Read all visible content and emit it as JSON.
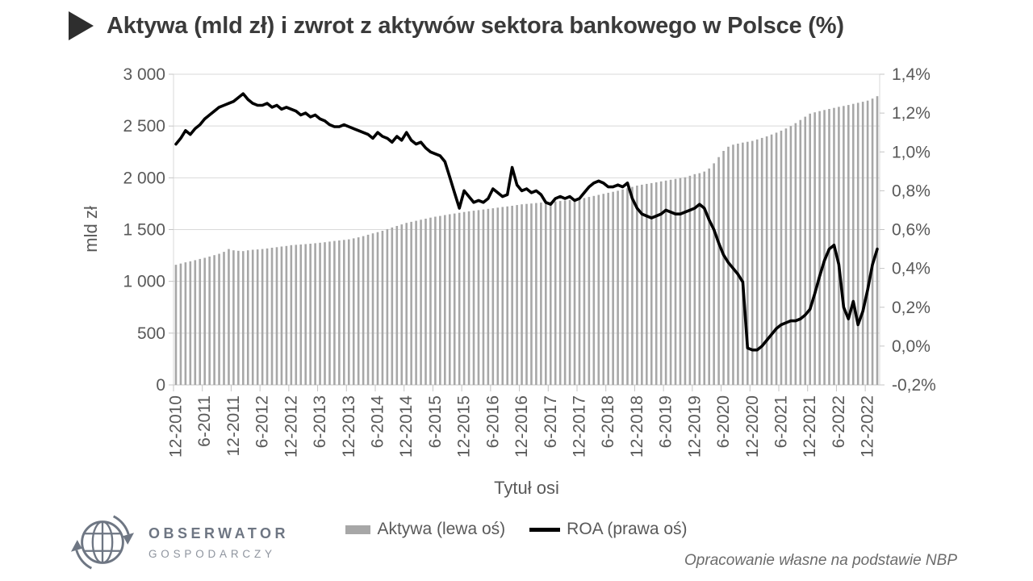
{
  "title": "Aktywa (mld zł) i zwrot z aktywów sektora bankowego w Polsce (%)",
  "source": "Opracowanie własne na podstawie NBP",
  "logo": {
    "line1": "OBSERWATOR",
    "line2": "GOSPODARCZY"
  },
  "colors": {
    "bar": "#a7a7a7",
    "line": "#000000",
    "grid": "#d9d9d9",
    "axis": "#c4c4c4",
    "tick_text": "#595959"
  },
  "chart_data": {
    "type": "bar+line combo",
    "n_points": 147,
    "x_frequency": "monthly",
    "x_label_every": 6,
    "x_axis_title": "Tytuł osi",
    "x_tick_labels": [
      "12-2010",
      "6-2011",
      "12-2011",
      "6-2012",
      "12-2012",
      "6-2013",
      "12-2013",
      "6-2014",
      "12-2014",
      "6-2015",
      "12-2015",
      "6-2016",
      "12-2016",
      "6-2017",
      "12-2017",
      "6-2018",
      "12-2018",
      "6-2019",
      "12-2019",
      "6-2020",
      "12-2020",
      "6-2021",
      "12-2021",
      "6-2022",
      "12-2022"
    ],
    "y_left": {
      "title": "mld zł",
      "min": 0,
      "max": 3000,
      "ticks": [
        "3 000",
        "2 500",
        "2 000",
        "1 500",
        "1 000",
        "500",
        "0"
      ]
    },
    "y_right": {
      "min": -0.2,
      "max": 1.4,
      "ticks": [
        "1,4%",
        "1,2%",
        "1,0%",
        "0,8%",
        "0,6%",
        "0,4%",
        "0,2%",
        "0,0%",
        "-0,2%"
      ]
    },
    "legend_position": "bottom",
    "grid": "horizontal only",
    "series": [
      {
        "name": "Aktywa (lewa oś)",
        "type": "bar",
        "axis": "left",
        "color": "#a7a7a7",
        "values": [
          1160,
          1172,
          1184,
          1194,
          1205,
          1216,
          1227,
          1240,
          1253,
          1266,
          1285,
          1312,
          1300,
          1295,
          1292,
          1300,
          1305,
          1308,
          1312,
          1318,
          1325,
          1330,
          1336,
          1342,
          1350,
          1353,
          1356,
          1360,
          1364,
          1368,
          1373,
          1378,
          1384,
          1390,
          1395,
          1400,
          1406,
          1415,
          1425,
          1437,
          1450,
          1463,
          1475,
          1488,
          1505,
          1520,
          1535,
          1550,
          1565,
          1575,
          1585,
          1595,
          1605,
          1615,
          1625,
          1632,
          1640,
          1648,
          1655,
          1662,
          1670,
          1676,
          1682,
          1688,
          1694,
          1700,
          1706,
          1712,
          1718,
          1724,
          1730,
          1737,
          1744,
          1748,
          1752,
          1756,
          1760,
          1764,
          1768,
          1772,
          1776,
          1781,
          1786,
          1791,
          1796,
          1805,
          1815,
          1825,
          1835,
          1845,
          1855,
          1865,
          1875,
          1888,
          1900,
          1912,
          1925,
          1933,
          1941,
          1949,
          1957,
          1965,
          1973,
          1981,
          1989,
          1997,
          2005,
          2020,
          2035,
          2045,
          2060,
          2090,
          2140,
          2200,
          2260,
          2300,
          2320,
          2330,
          2340,
          2348,
          2356,
          2370,
          2385,
          2400,
          2418,
          2436,
          2455,
          2476,
          2500,
          2528,
          2558,
          2590,
          2620,
          2632,
          2644,
          2655,
          2665,
          2675,
          2685,
          2694,
          2703,
          2714,
          2724,
          2734,
          2745,
          2765,
          2788
        ]
      },
      {
        "name": "ROA (prawa oś)",
        "type": "line",
        "axis": "right",
        "color": "#000000",
        "values": [
          1.04,
          1.07,
          1.11,
          1.09,
          1.12,
          1.14,
          1.17,
          1.19,
          1.21,
          1.23,
          1.24,
          1.25,
          1.26,
          1.28,
          1.3,
          1.27,
          1.25,
          1.24,
          1.24,
          1.25,
          1.23,
          1.24,
          1.22,
          1.23,
          1.22,
          1.21,
          1.19,
          1.2,
          1.18,
          1.19,
          1.17,
          1.16,
          1.14,
          1.13,
          1.13,
          1.14,
          1.13,
          1.12,
          1.11,
          1.1,
          1.09,
          1.07,
          1.1,
          1.08,
          1.07,
          1.05,
          1.08,
          1.06,
          1.1,
          1.06,
          1.04,
          1.05,
          1.02,
          1.0,
          0.99,
          0.98,
          0.95,
          0.87,
          0.79,
          0.71,
          0.8,
          0.77,
          0.74,
          0.75,
          0.74,
          0.76,
          0.81,
          0.79,
          0.77,
          0.78,
          0.92,
          0.83,
          0.8,
          0.81,
          0.79,
          0.8,
          0.78,
          0.74,
          0.73,
          0.76,
          0.77,
          0.76,
          0.77,
          0.75,
          0.76,
          0.79,
          0.82,
          0.84,
          0.85,
          0.84,
          0.82,
          0.82,
          0.83,
          0.82,
          0.84,
          0.76,
          0.71,
          0.68,
          0.67,
          0.66,
          0.67,
          0.68,
          0.7,
          0.69,
          0.68,
          0.68,
          0.69,
          0.7,
          0.71,
          0.73,
          0.71,
          0.65,
          0.6,
          0.53,
          0.47,
          0.43,
          0.4,
          0.37,
          0.33,
          -0.01,
          -0.02,
          -0.02,
          0.0,
          0.03,
          0.06,
          0.09,
          0.11,
          0.12,
          0.13,
          0.13,
          0.14,
          0.16,
          0.19,
          0.27,
          0.36,
          0.44,
          0.5,
          0.52,
          0.42,
          0.2,
          0.14,
          0.23,
          0.11,
          0.18,
          0.29,
          0.42,
          0.5
        ]
      }
    ]
  }
}
